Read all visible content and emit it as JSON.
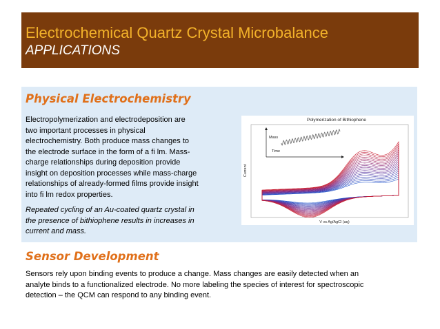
{
  "banner": {
    "title": "Electrochemical Quartz Crystal Microbalance",
    "subtitle": "APPLICATIONS"
  },
  "physical": {
    "heading": "Physical Electrochemistry",
    "lines": [
      "Electropolymerization and electrodeposition are",
      "two important processes in physical",
      "electrochemistry. Both produce mass changes to",
      "the electrode surface in the form of a fi lm. Mass-",
      "charge relationships during deposition provide",
      "insight on deposition processes while mass-charge",
      "relationships of already-formed films provide insight",
      "into fi lm redox properties."
    ],
    "caption_lines": [
      "Repeated cycling of an Au-coated quartz crystal in",
      "the presence of bithiophene results in increases in",
      "current and mass."
    ]
  },
  "sensor": {
    "heading": "Sensor Development",
    "lines": [
      "Sensors rely upon binding events to produce a change. Mass changes are easily detected when an",
      "analyte binds to a functionalized electrode. No more labeling the species of interest for spectroscopic",
      "detection – the QCM can respond to any binding event."
    ]
  },
  "chart_data": {
    "type": "line",
    "title": "Polymerization of Bithiophene",
    "xlabel": "V vs Ag/AgCl (aq)",
    "ylabel": "Current",
    "inset_labels": {
      "mass": "Mass",
      "time": "Time"
    },
    "cycles": 20,
    "grid": false,
    "legend": "none",
    "colors": {
      "first": "#2255cc",
      "last": "#cc2233",
      "mid": "#7a2a8a"
    }
  }
}
